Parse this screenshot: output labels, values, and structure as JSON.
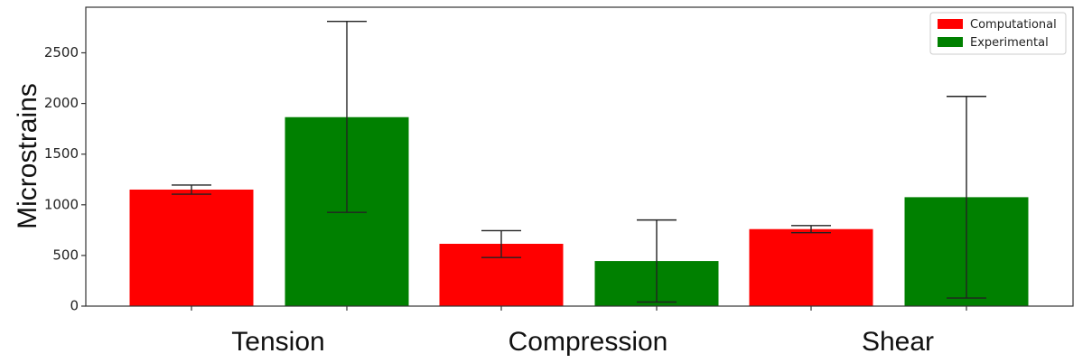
{
  "chart_data": {
    "type": "bar",
    "title": "",
    "xlabel": "",
    "ylabel": "Microstrains",
    "categories": [
      "Tension",
      "Compression",
      "Shear"
    ],
    "ylim": [
      0,
      2950
    ],
    "yticks": [
      0,
      500,
      1000,
      1500,
      2000,
      2500
    ],
    "grid": false,
    "legend": "top-right",
    "series": [
      {
        "name": "Computational",
        "color": "#ff0000",
        "values": [
          1150,
          615,
          760
        ],
        "error_low": [
          1105,
          480,
          725
        ],
        "error_high": [
          1195,
          745,
          795
        ]
      },
      {
        "name": "Experimental",
        "color": "#008000",
        "values": [
          1865,
          445,
          1075
        ],
        "error_low": [
          925,
          40,
          80
        ],
        "error_high": [
          2810,
          850,
          2070
        ]
      }
    ]
  }
}
